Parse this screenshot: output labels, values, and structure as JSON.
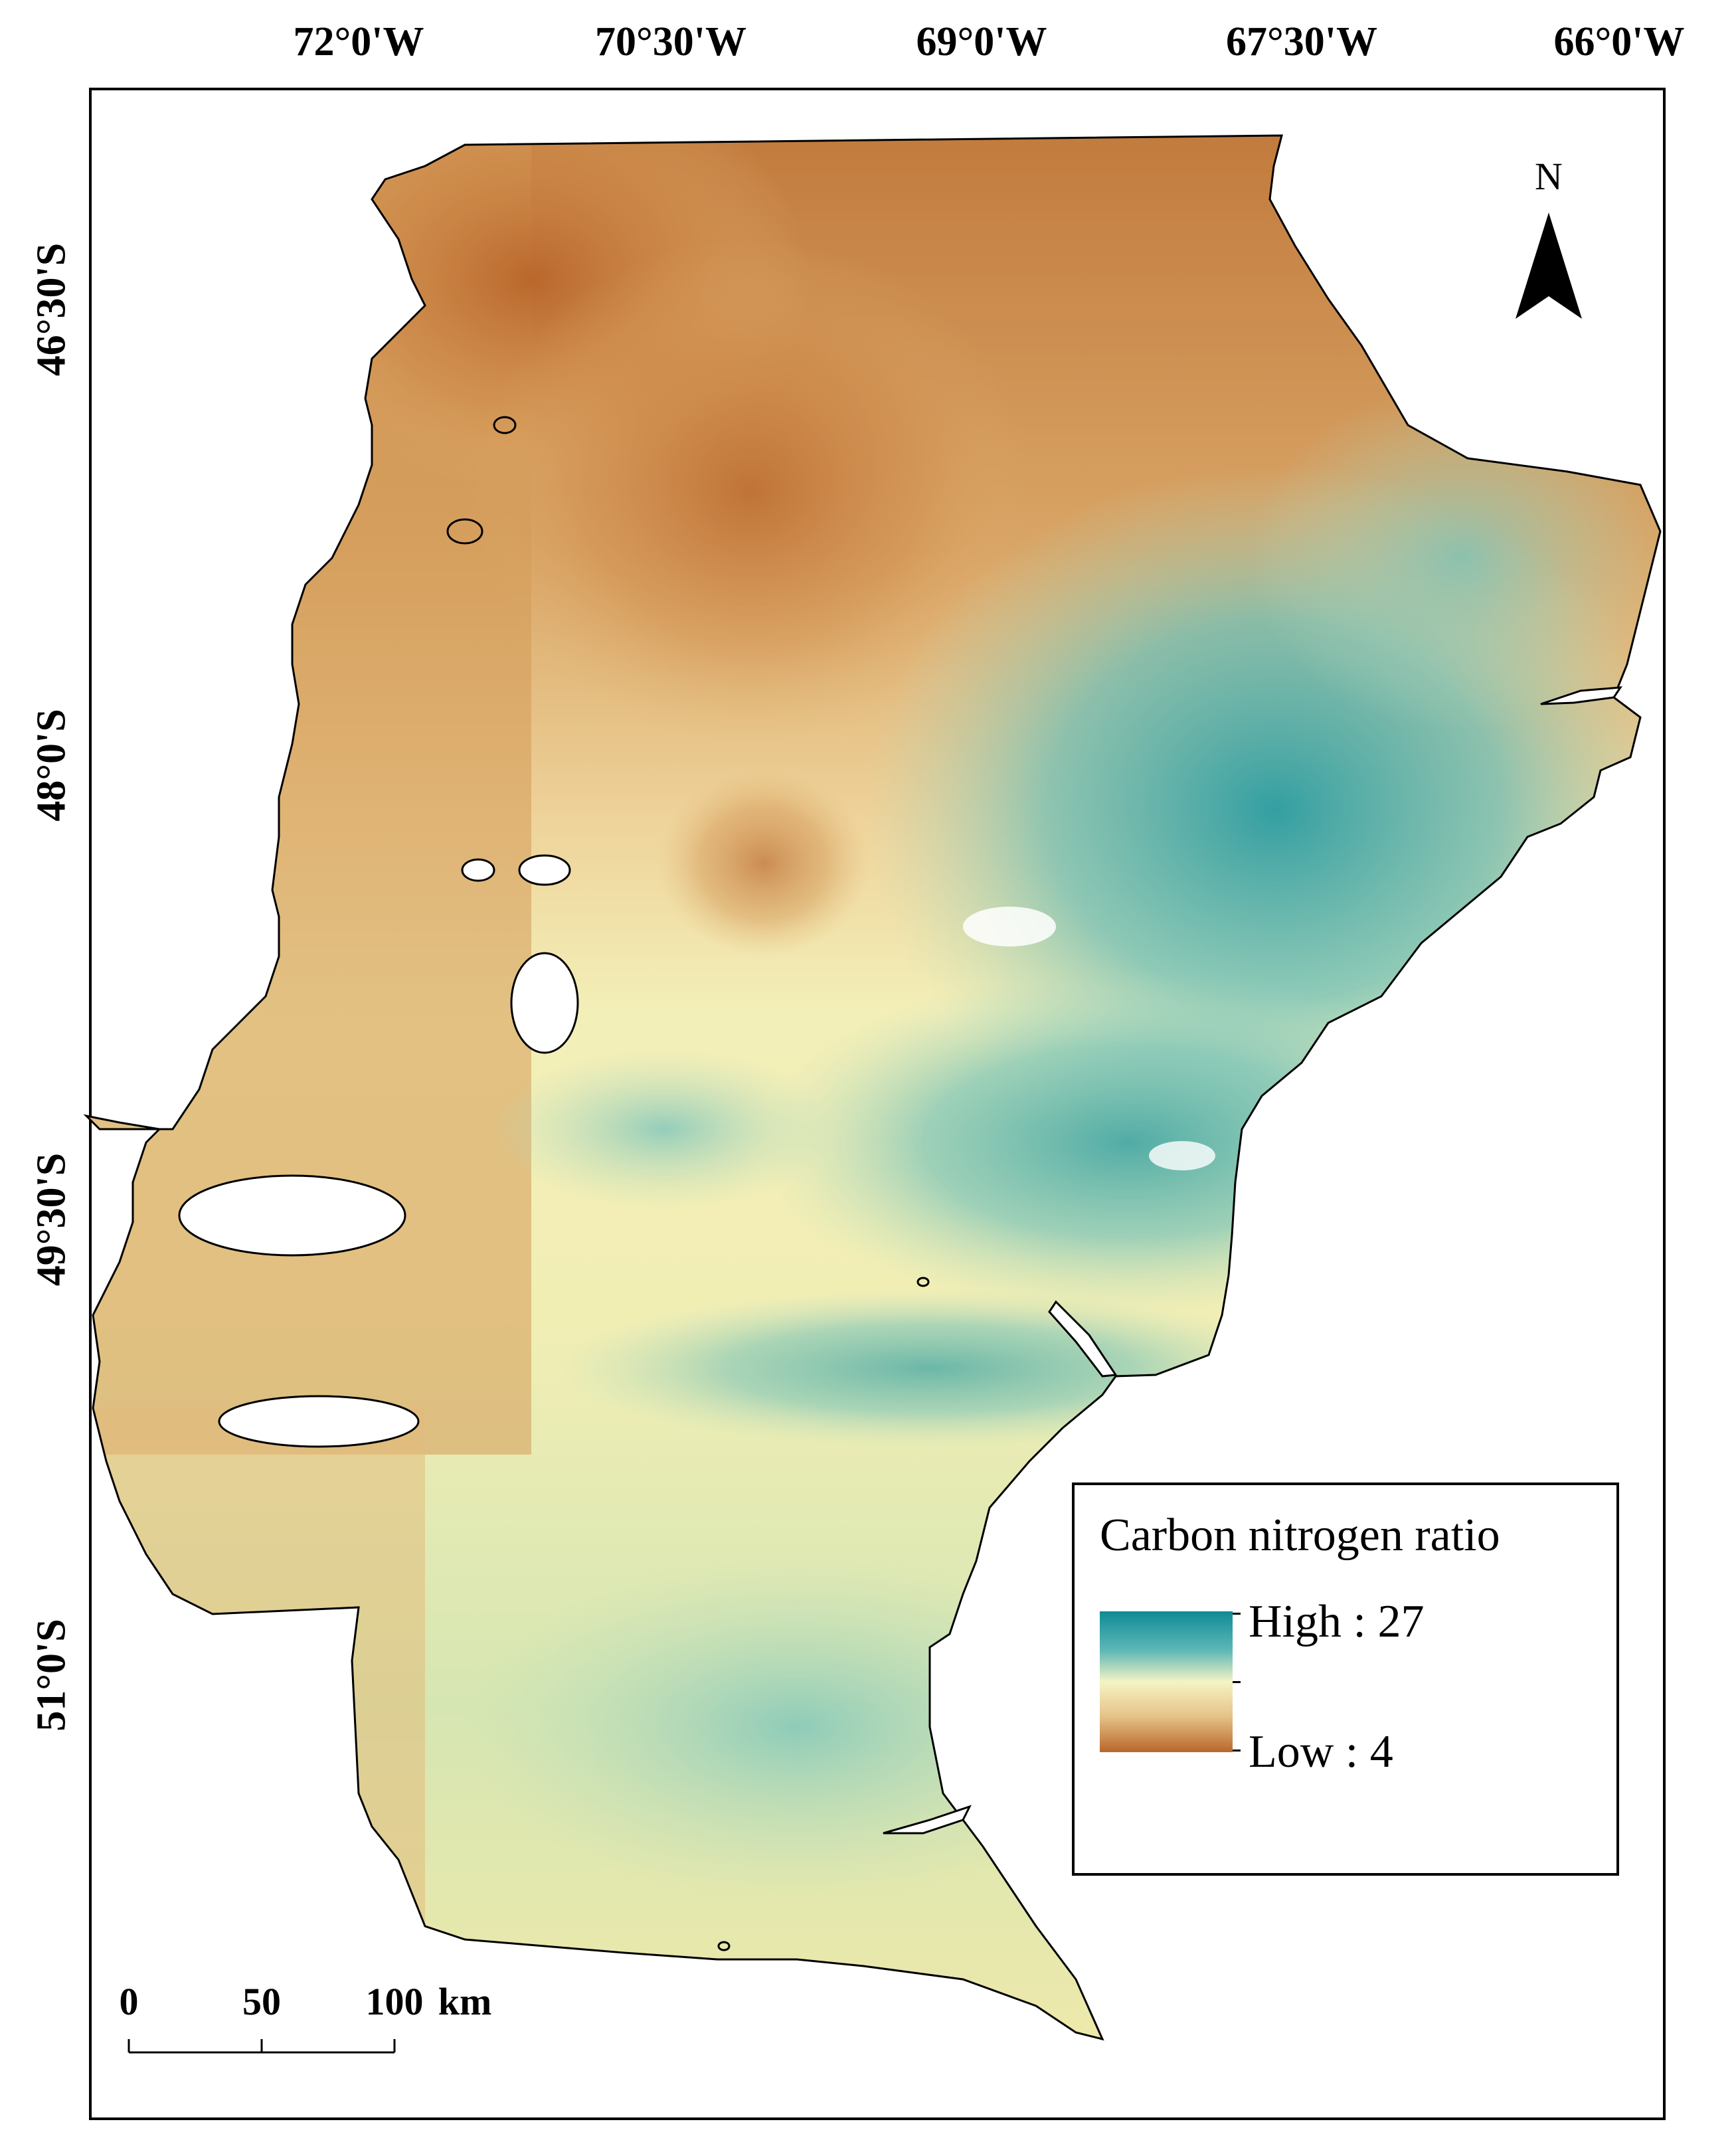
{
  "longitude_labels": [
    "72°0'W",
    "70°30'W",
    "69°0'W",
    "67°30'W",
    "66°0'W"
  ],
  "latitude_labels": [
    "46°30'S",
    "48°0'S",
    "49°30'S",
    "51°0'S"
  ],
  "north_arrow": {
    "label": "N",
    "icon": "north-arrow-icon"
  },
  "legend": {
    "title": "Carbon nitrogen ratio",
    "high_label": "High : 27",
    "low_label": "Low : 4",
    "high_value": 27,
    "low_value": 4,
    "colors": {
      "high": "#0f8b96",
      "mid": "#f4f4c4",
      "low": "#b8672b"
    }
  },
  "scale_bar": {
    "ticks": [
      "0",
      "50",
      "100"
    ],
    "unit": "km"
  }
}
